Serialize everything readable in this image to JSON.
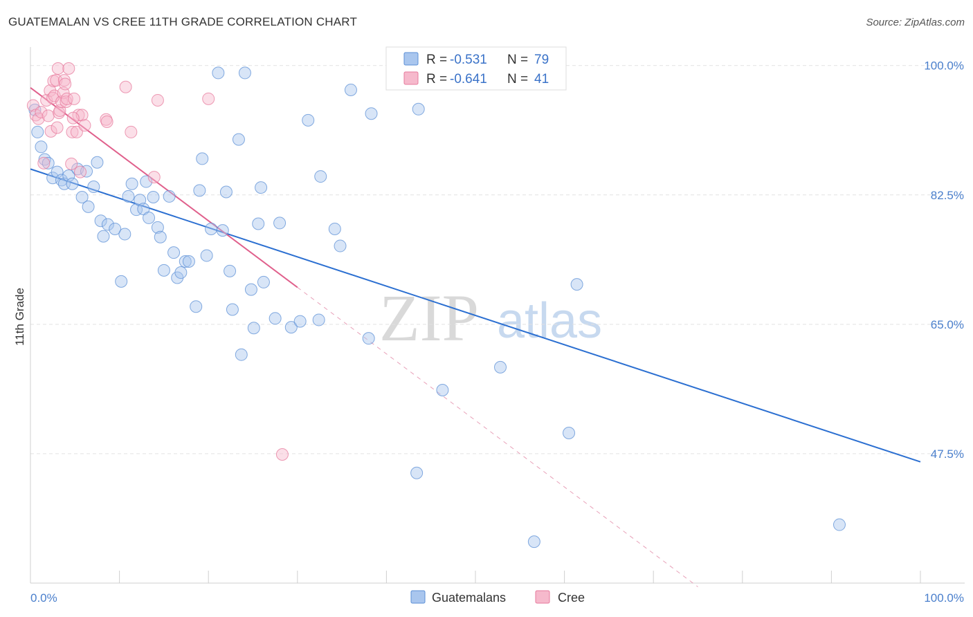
{
  "title": "GUATEMALAN VS CREE 11TH GRADE CORRELATION CHART",
  "source": "Source: ZipAtlas.com",
  "watermark": {
    "zip": "ZIP",
    "atlas": "atlas"
  },
  "colors": {
    "guatemalans": "#5b8fd6",
    "guatemalans_fill": "#a9c6ee",
    "guatemalans_line": "#2b6fd1",
    "cree": "#e7799c",
    "cree_fill": "#f6b9cc",
    "cree_line": "#e0608c",
    "axis_text": "#4a7fcc",
    "grid": "#e2e2e2"
  },
  "legend_top": {
    "rows": [
      {
        "r_label": "R =",
        "r_value": "-0.531",
        "n_label": "N =",
        "n_value": "79"
      },
      {
        "r_label": "R =",
        "r_value": "-0.641",
        "n_label": "N =",
        "n_value": "41"
      }
    ]
  },
  "legend_bottom": [
    "Guatemalans",
    "Cree"
  ],
  "chart_data": {
    "type": "scatter",
    "xlabel": "",
    "ylabel": "11th Grade",
    "xlim": [
      0,
      100
    ],
    "ylim": [
      30,
      102.5
    ],
    "x_tick_labels": [
      "0.0%",
      "100.0%"
    ],
    "y_ticks": [
      47.5,
      65.0,
      82.5,
      100.0
    ],
    "y_tick_labels": [
      "47.5%",
      "65.0%",
      "82.5%",
      "100.0%"
    ],
    "grid": true,
    "legend": "top-center",
    "series": [
      {
        "name": "Guatemalans",
        "regression": {
          "x0": 0,
          "y0": 86.0,
          "x1": 100,
          "y1": 46.4
        },
        "points": [
          [
            0.5,
            94.0
          ],
          [
            0.8,
            91.0
          ],
          [
            1.2,
            89.0
          ],
          [
            1.6,
            87.3
          ],
          [
            2.0,
            86.8
          ],
          [
            2.5,
            84.8
          ],
          [
            3.0,
            85.6
          ],
          [
            3.5,
            84.5
          ],
          [
            3.8,
            84.0
          ],
          [
            4.3,
            85.1
          ],
          [
            4.7,
            84.0
          ],
          [
            5.3,
            86.0
          ],
          [
            5.8,
            82.2
          ],
          [
            6.3,
            85.7
          ],
          [
            6.5,
            80.9
          ],
          [
            7.1,
            83.6
          ],
          [
            7.5,
            86.9
          ],
          [
            7.9,
            79.0
          ],
          [
            8.2,
            76.9
          ],
          [
            8.7,
            78.5
          ],
          [
            9.5,
            77.9
          ],
          [
            10.2,
            70.8
          ],
          [
            10.6,
            77.2
          ],
          [
            11.0,
            82.3
          ],
          [
            11.4,
            84.0
          ],
          [
            11.9,
            80.5
          ],
          [
            12.3,
            81.8
          ],
          [
            12.7,
            80.6
          ],
          [
            13.0,
            84.3
          ],
          [
            13.3,
            79.4
          ],
          [
            13.8,
            82.2
          ],
          [
            14.3,
            78.1
          ],
          [
            14.6,
            76.8
          ],
          [
            15.0,
            72.3
          ],
          [
            15.6,
            82.3
          ],
          [
            16.1,
            74.7
          ],
          [
            16.5,
            71.3
          ],
          [
            16.9,
            72.0
          ],
          [
            17.4,
            73.5
          ],
          [
            17.8,
            73.5
          ],
          [
            18.6,
            67.4
          ],
          [
            19.0,
            83.1
          ],
          [
            19.3,
            87.4
          ],
          [
            19.8,
            74.3
          ],
          [
            20.3,
            77.9
          ],
          [
            21.1,
            99.0
          ],
          [
            21.6,
            77.7
          ],
          [
            22.0,
            82.9
          ],
          [
            22.4,
            72.2
          ],
          [
            22.7,
            67.0
          ],
          [
            23.4,
            90.0
          ],
          [
            23.7,
            60.9
          ],
          [
            24.1,
            99.0
          ],
          [
            24.8,
            69.7
          ],
          [
            25.1,
            64.5
          ],
          [
            25.6,
            78.6
          ],
          [
            25.9,
            83.5
          ],
          [
            26.2,
            70.7
          ],
          [
            27.5,
            65.8
          ],
          [
            28.0,
            78.7
          ],
          [
            29.3,
            64.6
          ],
          [
            30.3,
            65.4
          ],
          [
            31.2,
            92.6
          ],
          [
            32.4,
            65.6
          ],
          [
            32.6,
            85.0
          ],
          [
            34.2,
            77.9
          ],
          [
            34.8,
            75.6
          ],
          [
            36.0,
            96.7
          ],
          [
            38.0,
            63.1
          ],
          [
            38.3,
            93.5
          ],
          [
            43.4,
            44.9
          ],
          [
            43.6,
            94.1
          ],
          [
            46.3,
            56.1
          ],
          [
            52.8,
            59.2
          ],
          [
            56.6,
            35.6
          ],
          [
            59.0,
            98.9
          ],
          [
            60.5,
            50.3
          ],
          [
            61.4,
            70.4
          ],
          [
            90.9,
            37.9
          ]
        ]
      },
      {
        "name": "Cree",
        "regression": {
          "x0": 0,
          "y0": 97.0,
          "x1": 30,
          "y1": 70.0,
          "dash_x1": 75,
          "dash_y1": 29.5
        },
        "points": [
          [
            0.3,
            94.6
          ],
          [
            0.6,
            93.3
          ],
          [
            0.9,
            92.8
          ],
          [
            1.2,
            93.7
          ],
          [
            1.5,
            86.8
          ],
          [
            1.8,
            95.3
          ],
          [
            2.0,
            93.2
          ],
          [
            2.2,
            96.6
          ],
          [
            2.3,
            91.1
          ],
          [
            2.5,
            95.6
          ],
          [
            2.6,
            97.9
          ],
          [
            2.7,
            95.9
          ],
          [
            2.9,
            98.0
          ],
          [
            3.0,
            91.6
          ],
          [
            3.1,
            99.6
          ],
          [
            3.2,
            93.6
          ],
          [
            3.3,
            93.9
          ],
          [
            3.5,
            95.1
          ],
          [
            3.7,
            96.3
          ],
          [
            3.8,
            98.0
          ],
          [
            3.9,
            97.5
          ],
          [
            4.0,
            95.1
          ],
          [
            4.1,
            95.5
          ],
          [
            4.3,
            99.6
          ],
          [
            4.6,
            86.7
          ],
          [
            4.7,
            91.0
          ],
          [
            4.9,
            95.5
          ],
          [
            5.2,
            91.0
          ],
          [
            5.4,
            93.3
          ],
          [
            5.6,
            85.6
          ],
          [
            5.8,
            93.3
          ],
          [
            6.1,
            91.9
          ],
          [
            8.5,
            92.7
          ],
          [
            8.6,
            92.4
          ],
          [
            10.7,
            97.1
          ],
          [
            11.3,
            91.0
          ],
          [
            13.9,
            84.9
          ],
          [
            14.3,
            95.3
          ],
          [
            20.0,
            95.5
          ],
          [
            28.3,
            47.4
          ],
          [
            4.8,
            92.9
          ]
        ]
      }
    ]
  }
}
